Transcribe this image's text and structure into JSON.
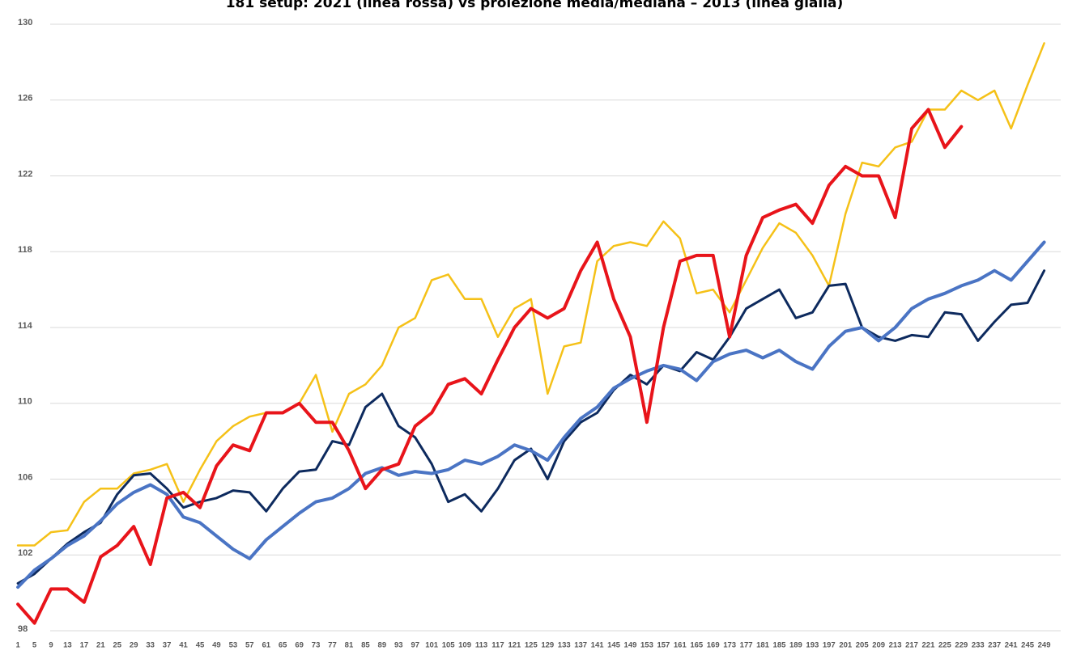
{
  "chart_data": {
    "type": "line",
    "title": "181 setup: 2021 (linea rossa) vs proiezione media/mediana – 2013 (linea gialla)",
    "x": [
      1,
      5,
      9,
      13,
      17,
      21,
      25,
      29,
      33,
      37,
      41,
      45,
      49,
      53,
      57,
      61,
      65,
      69,
      73,
      77,
      81,
      85,
      89,
      93,
      97,
      101,
      105,
      109,
      113,
      117,
      121,
      125,
      129,
      133,
      137,
      141,
      145,
      149,
      153,
      157,
      161,
      165,
      169,
      173,
      177,
      181,
      185,
      189,
      193,
      197,
      201,
      205,
      209,
      213,
      217,
      221,
      225,
      229,
      233,
      237,
      241,
      245,
      249
    ],
    "xlim": [
      0,
      253
    ],
    "xticks": [
      1,
      5,
      9,
      13,
      17,
      21,
      25,
      29,
      33,
      37,
      41,
      45,
      49,
      53,
      57,
      61,
      65,
      69,
      73,
      77,
      81,
      85,
      89,
      93,
      97,
      101,
      105,
      109,
      113,
      117,
      121,
      125,
      129,
      133,
      137,
      141,
      145,
      149,
      153,
      157,
      161,
      165,
      169,
      173,
      177,
      181,
      185,
      189,
      193,
      197,
      201,
      205,
      209,
      213,
      217,
      221,
      225,
      229,
      233,
      237,
      241,
      245,
      249
    ],
    "ylim": [
      98,
      130
    ],
    "yticks": [
      98,
      102,
      106,
      110,
      114,
      118,
      122,
      126,
      130
    ],
    "grid": true,
    "series": [
      {
        "color": "#f5c118",
        "values": [
          102.5,
          102.5,
          103.2,
          103.3,
          104.8,
          105.5,
          105.5,
          106.3,
          106.5,
          106.8,
          104.8,
          106.5,
          108,
          108.8,
          109.3,
          109.5,
          109.5,
          110,
          111.5,
          108.5,
          110.5,
          111,
          112,
          114,
          114.5,
          116.5,
          116.8,
          115.5,
          115.5,
          113.5,
          115,
          115.5,
          110.5,
          113,
          113.2,
          117.5,
          118.3,
          118.5,
          118.3,
          119.6,
          118.7,
          115.8,
          116,
          114.8,
          116.5,
          118.2,
          119.5,
          119,
          117.8,
          116.2,
          120,
          122.7,
          122.5,
          123.5,
          123.8,
          125.5,
          125.5,
          126.5,
          126,
          126.5,
          124.5,
          126.8,
          129
        ]
      },
      {
        "color": "#0d2a5e",
        "values": [
          100.5,
          101,
          101.8,
          102.6,
          103.2,
          103.7,
          105.2,
          106.2,
          106.3,
          105.5,
          104.5,
          104.8,
          105,
          105.4,
          105.3,
          104.3,
          105.5,
          106.4,
          106.5,
          108,
          107.8,
          109.8,
          110.5,
          108.8,
          108.2,
          106.8,
          104.8,
          105.2,
          104.3,
          105.5,
          107,
          107.6,
          106,
          108,
          109,
          109.5,
          110.7,
          111.5,
          111,
          112,
          111.7,
          112.7,
          112.3,
          113.5,
          115,
          115.5,
          116,
          114.5,
          114.8,
          116.2,
          116.3,
          114,
          113.5,
          113.3,
          113.6,
          113.5,
          114.8,
          114.7,
          113.3,
          114.3,
          115.2,
          115.3,
          117
        ]
      },
      {
        "color": "#4a74c4",
        "values": [
          100.3,
          101.2,
          101.8,
          102.5,
          103,
          103.8,
          104.7,
          105.3,
          105.7,
          105.2,
          104,
          103.7,
          103,
          102.3,
          101.8,
          102.8,
          103.5,
          104.2,
          104.8,
          105,
          105.5,
          106.3,
          106.6,
          106.2,
          106.4,
          106.3,
          106.5,
          107,
          106.8,
          107.2,
          107.8,
          107.5,
          107,
          108.2,
          109.2,
          109.8,
          110.8,
          111.3,
          111.7,
          112,
          111.8,
          111.2,
          112.2,
          112.6,
          112.8,
          112.4,
          112.8,
          112.2,
          111.8,
          113,
          113.8,
          114,
          113.3,
          114,
          115,
          115.5,
          115.8,
          116.2,
          116.5,
          117,
          116.5,
          117.5,
          118.5
        ]
      },
      {
        "color": "#e8141a",
        "values": [
          99.4,
          98.4,
          100.2,
          100.2,
          99.5,
          101.9,
          102.5,
          103.5,
          101.5,
          105,
          105.3,
          104.5,
          106.7,
          107.8,
          107.5,
          109.5,
          109.5,
          110,
          109,
          109,
          107.5,
          105.5,
          106.5,
          106.8,
          108.8,
          109.5,
          111,
          111.3,
          110.5,
          112.3,
          114,
          115,
          114.5,
          115,
          117,
          118.5,
          115.5,
          113.5,
          109,
          114,
          117.5,
          117.8,
          117.8,
          113.5,
          117.8,
          119.8,
          120.2,
          120.5,
          119.5,
          121.5,
          122.5,
          122,
          122,
          119.8,
          124.5,
          125.5,
          123.5,
          124.6,
          null,
          null,
          null,
          null,
          null
        ]
      }
    ]
  }
}
